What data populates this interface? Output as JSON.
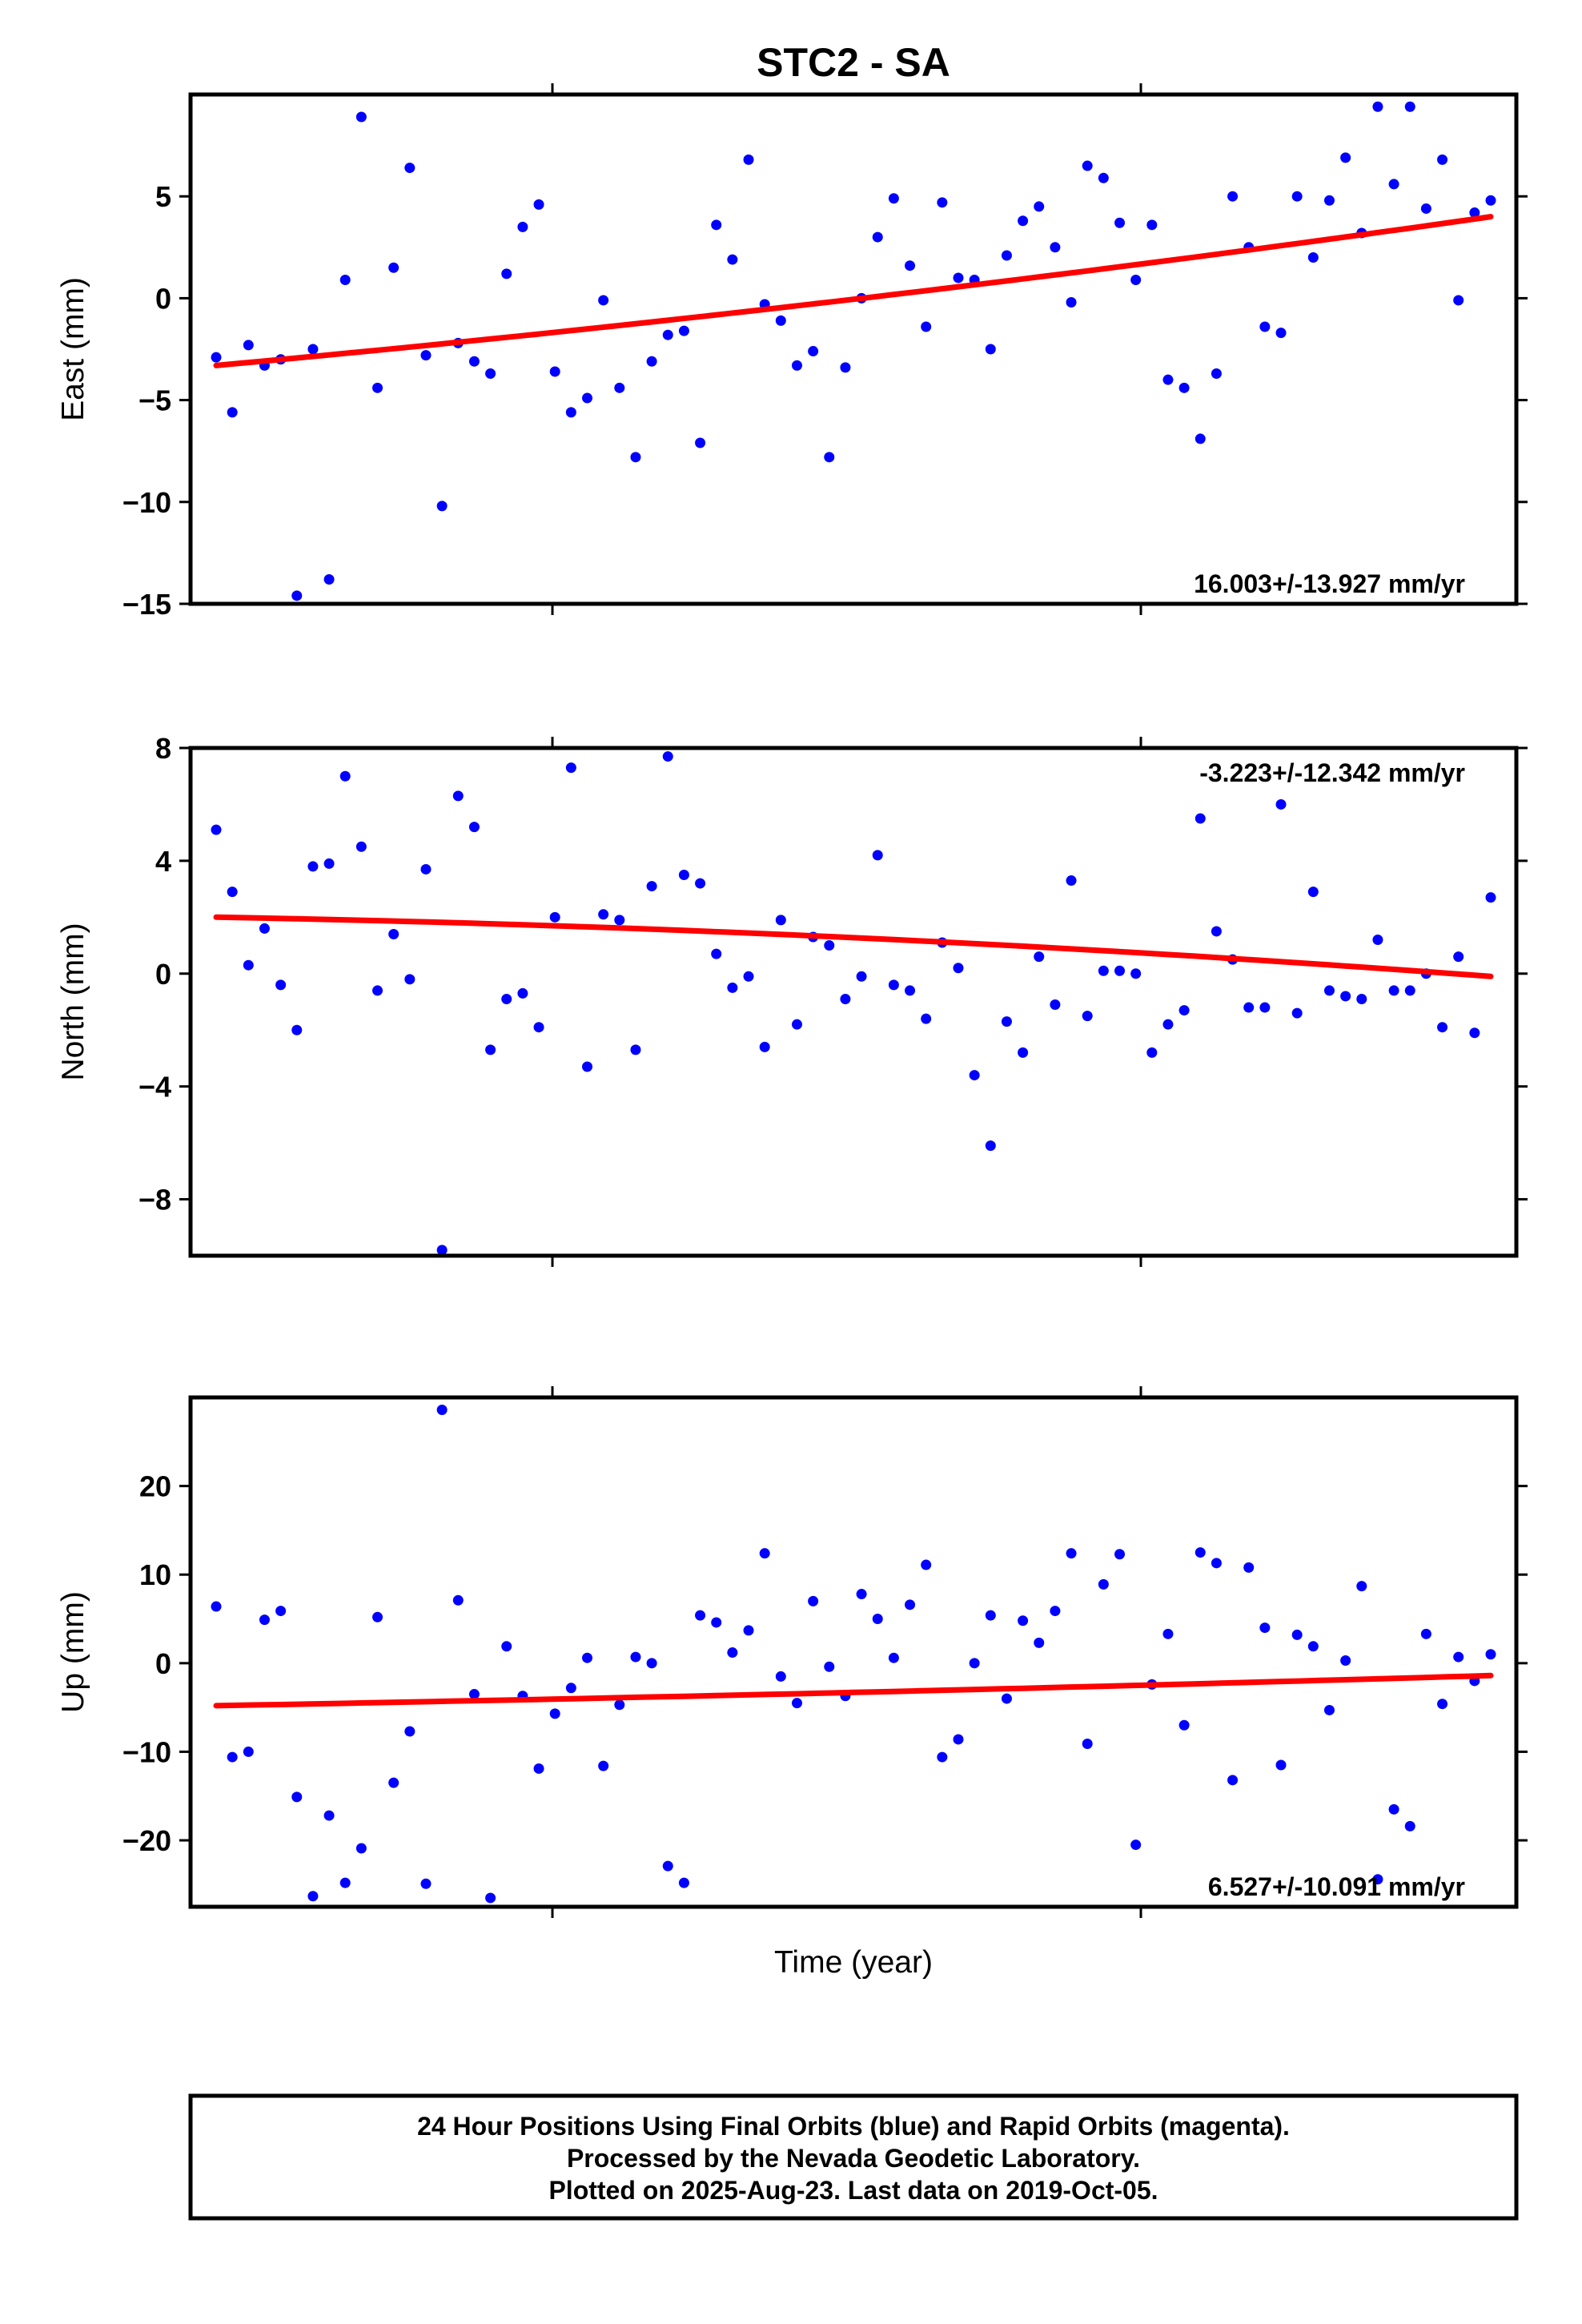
{
  "chart_data": {
    "type": "scatter",
    "title": "STC2 - SA",
    "xlabel": "Time (year)",
    "colors": {
      "points": "#0000ff",
      "fit": "#ff0000",
      "frame": "#000000"
    },
    "panels": [
      {
        "id": "east",
        "ylabel": "East (mm)",
        "ylim": [
          -15,
          10
        ],
        "yticks": [
          5,
          0,
          -5,
          -10,
          -15
        ],
        "ytick_labels": [
          "5",
          "0",
          "−5",
          "−10",
          "−15"
        ],
        "rate_label": "16.003+/-13.927 mm/yr",
        "rate_position": "bottom-right",
        "points": [
          -2.9,
          -5.6,
          -2.3,
          -3.3,
          -3.0,
          -14.6,
          -2.5,
          -13.8,
          0.9,
          8.9,
          -4.4,
          1.5,
          6.4,
          -2.8,
          -10.2,
          -2.2,
          -3.1,
          -3.7,
          1.2,
          3.5,
          4.6,
          -3.6,
          -5.6,
          -4.9,
          -0.1,
          -4.4,
          -7.8,
          -3.1,
          -1.8,
          -1.6,
          -7.1,
          3.6,
          1.9,
          6.8,
          -0.3,
          -1.1,
          -3.3,
          -2.6,
          -7.8,
          -3.4,
          0.0,
          3.0,
          4.9,
          1.6,
          -1.4,
          4.7,
          1.0,
          0.9,
          -2.5,
          2.1,
          3.8,
          4.5,
          2.5,
          -0.2,
          6.5,
          5.9,
          3.7,
          0.9,
          3.6,
          -4.0,
          -4.4,
          -6.9,
          -3.7,
          5.0,
          2.5,
          -1.4,
          -1.7,
          5.0,
          2.0,
          4.8,
          6.9,
          3.2,
          9.4,
          5.6,
          9.4,
          4.4,
          6.8,
          -0.1,
          4.2,
          4.8
        ],
        "trend_start": -3.3,
        "trend_end": 4.0,
        "trend_curve": 1.6
      },
      {
        "id": "north",
        "ylabel": "North (mm)",
        "ylim": [
          -10,
          8
        ],
        "yticks": [
          8,
          4,
          0,
          -4,
          -8
        ],
        "ytick_labels": [
          "8",
          "4",
          "0",
          "−4",
          "−8"
        ],
        "rate_label": "-3.223+/-12.342 mm/yr",
        "rate_position": "top-right",
        "points": [
          5.1,
          2.9,
          0.3,
          1.6,
          -0.4,
          -2.0,
          3.8,
          3.9,
          7.0,
          4.5,
          -0.6,
          1.4,
          -0.2,
          3.7,
          -9.8,
          6.3,
          5.2,
          -2.7,
          -0.9,
          -0.7,
          -1.9,
          2.0,
          7.3,
          -3.3,
          2.1,
          1.9,
          -2.7,
          3.1,
          7.7,
          3.5,
          3.2,
          0.7,
          -0.5,
          -0.1,
          -2.6,
          1.9,
          -1.8,
          1.3,
          1.0,
          -0.9,
          -0.1,
          4.2,
          -0.4,
          -0.6,
          -1.6,
          1.1,
          0.2,
          -3.6,
          -6.1,
          -1.7,
          -2.8,
          0.6,
          -1.1,
          3.3,
          -1.5,
          0.1,
          0.1,
          0.0,
          -2.8,
          -1.8,
          -1.3,
          5.5,
          1.5,
          0.5,
          -1.2,
          -1.2,
          6.0,
          -1.4,
          2.9,
          -0.6,
          -0.8,
          -0.9,
          1.2,
          -0.6,
          -0.6,
          0.0,
          -1.9,
          0.6,
          -2.1,
          2.7
        ],
        "trend_start": 2.0,
        "trend_end": -0.1,
        "trend_curve": -1.3
      },
      {
        "id": "up",
        "ylabel": "Up (mm)",
        "ylim": [
          -27.5,
          30
        ],
        "yticks": [
          20,
          10,
          0,
          -10,
          -20
        ],
        "ytick_labels": [
          "20",
          "10",
          "0",
          "−10",
          "−20"
        ],
        "rate_label": "6.527+/-10.091 mm/yr",
        "rate_position": "bottom-right",
        "points": [
          6.4,
          -10.6,
          -10.0,
          4.9,
          5.9,
          -15.1,
          -26.3,
          -17.2,
          -24.8,
          -20.9,
          5.2,
          -13.5,
          -7.7,
          -24.9,
          28.6,
          7.1,
          -3.5,
          -26.5,
          1.9,
          -3.7,
          -11.9,
          -5.7,
          -2.8,
          0.6,
          -11.6,
          -4.7,
          0.7,
          0.0,
          -22.9,
          -24.8,
          5.4,
          4.6,
          1.2,
          3.7,
          12.4,
          -1.5,
          -4.5,
          7.0,
          -0.4,
          -3.7,
          7.8,
          5.0,
          0.6,
          6.6,
          11.1,
          -10.6,
          -8.6,
          0.0,
          5.4,
          -4.0,
          4.8,
          2.3,
          5.9,
          12.4,
          -9.1,
          8.9,
          12.3,
          -20.5,
          -2.4,
          3.3,
          -7.0,
          12.5,
          11.3,
          -13.2,
          10.8,
          4.0,
          -11.5,
          3.2,
          1.9,
          -5.3,
          0.3,
          8.7,
          -24.4,
          -16.5,
          -18.4,
          3.3,
          -4.6,
          0.7,
          -2.0,
          1.0
        ],
        "trend_start": -4.8,
        "trend_end": -1.4,
        "trend_curve": 0.8
      }
    ]
  },
  "caption": {
    "line1": "24 Hour Positions Using Final Orbits (blue) and Rapid Orbits (magenta).",
    "line2": "Processed by the Nevada Geodetic Laboratory.",
    "line3": "Plotted on 2025-Aug-23. Last data on 2019-Oct-05."
  }
}
